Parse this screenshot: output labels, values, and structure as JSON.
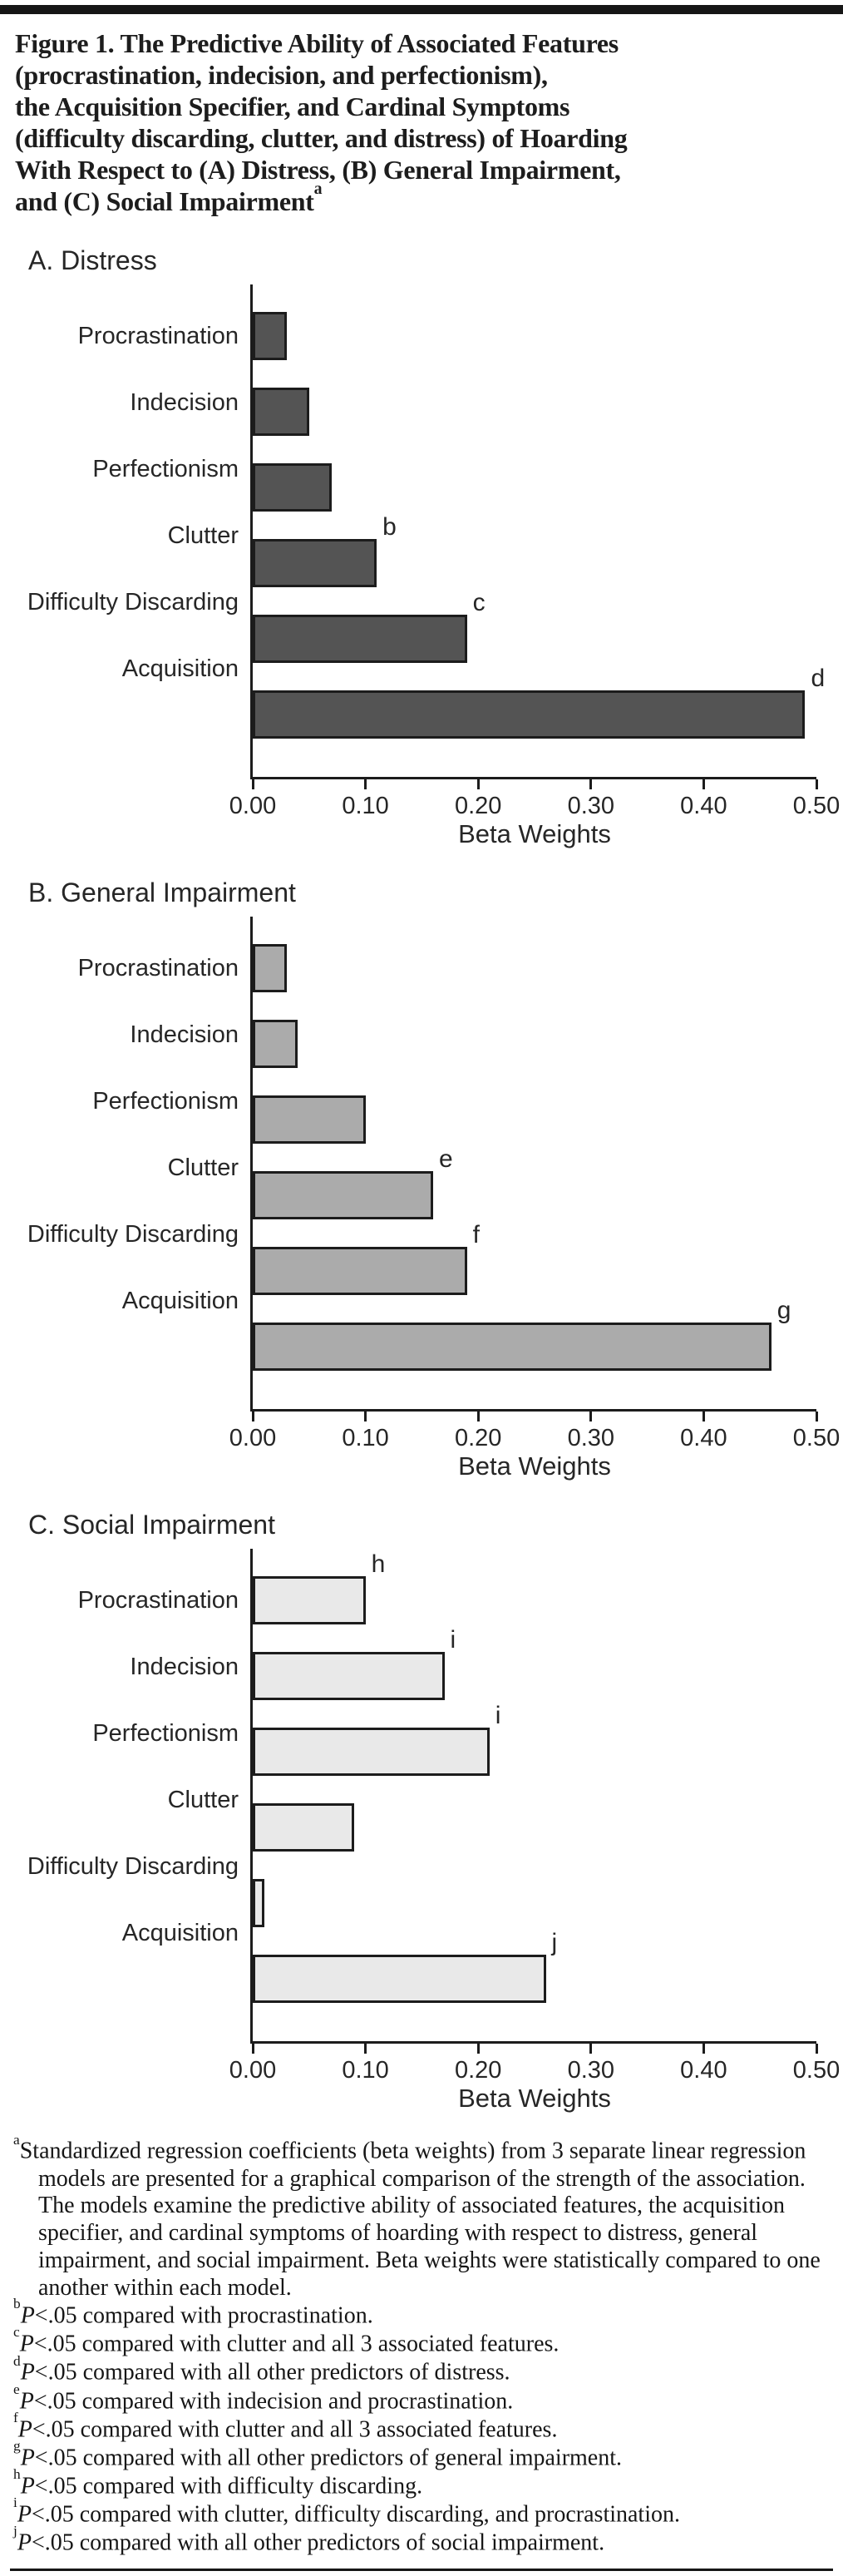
{
  "figure": {
    "title_lines": [
      "Figure 1. The Predictive Ability of Associated Features",
      "(procrastination, indecision, and perfectionism),",
      "the Acquisition Specifier, and Cardinal Symptoms",
      "(difficulty discarding, clutter, and distress) of Hoarding",
      "With Respect to (A) Distress, (B) General Impairment,",
      "and (C) Social Impairment"
    ],
    "title_superscript": "a"
  },
  "chart_data": [
    {
      "type": "bar",
      "orientation": "horizontal",
      "title": "A. Distress",
      "categories": [
        "Procrastination",
        "Indecision",
        "Perfectionism",
        "Clutter",
        "Difficulty Discarding",
        "Acquisition"
      ],
      "values": [
        0.03,
        0.05,
        0.07,
        0.11,
        0.19,
        0.49
      ],
      "annotations": [
        "",
        "",
        "",
        "b",
        "c",
        "d"
      ],
      "xlabel": "Beta Weights",
      "xlim": [
        0,
        0.5
      ],
      "x_ticks": [
        "0.00",
        "0.10",
        "0.20",
        "0.30",
        "0.40",
        "0.50"
      ],
      "bar_color": "#545454",
      "grid": false,
      "legend": "none"
    },
    {
      "type": "bar",
      "orientation": "horizontal",
      "title": "B. General Impairment",
      "categories": [
        "Procrastination",
        "Indecision",
        "Perfectionism",
        "Clutter",
        "Difficulty Discarding",
        "Acquisition"
      ],
      "values": [
        0.03,
        0.04,
        0.1,
        0.16,
        0.19,
        0.46
      ],
      "annotations": [
        "",
        "",
        "",
        "e",
        "f",
        "g"
      ],
      "xlabel": "Beta Weights",
      "xlim": [
        0,
        0.5
      ],
      "x_ticks": [
        "0.00",
        "0.10",
        "0.20",
        "0.30",
        "0.40",
        "0.50"
      ],
      "bar_color": "#ababab",
      "grid": false,
      "legend": "none"
    },
    {
      "type": "bar",
      "orientation": "horizontal",
      "title": "C. Social Impairment",
      "categories": [
        "Procrastination",
        "Indecision",
        "Perfectionism",
        "Clutter",
        "Difficulty Discarding",
        "Acquisition"
      ],
      "values": [
        0.1,
        0.17,
        0.21,
        0.09,
        0.01,
        0.26
      ],
      "annotations": [
        "h",
        "i",
        "i",
        "",
        "",
        "j"
      ],
      "xlabel": "Beta Weights",
      "xlim": [
        0,
        0.5
      ],
      "x_ticks": [
        "0.00",
        "0.10",
        "0.20",
        "0.30",
        "0.40",
        "0.50"
      ],
      "bar_color": "#e9e9e9",
      "grid": false,
      "legend": "none"
    }
  ],
  "footnotes": [
    {
      "sup": "a",
      "p": "",
      "rest": "Standardized regression coefficients (beta weights) from 3 separate linear regression models are presented for a graphical comparison of the strength of the association. The models examine the predictive ability of associated features, the acquisition specifier, and cardinal symptoms of hoarding with respect to distress, general impairment, and social impairment. Beta weights were statistically compared to one another within each model."
    },
    {
      "sup": "b",
      "p": "P",
      "rest": "<.05 compared with procrastination."
    },
    {
      "sup": "c",
      "p": "P",
      "rest": "<.05 compared with clutter and all 3 associated features."
    },
    {
      "sup": "d",
      "p": "P",
      "rest": "<.05 compared with all other predictors of distress."
    },
    {
      "sup": "e",
      "p": "P",
      "rest": "<.05 compared with indecision and procrastination."
    },
    {
      "sup": "f",
      "p": "P",
      "rest": "<.05 compared with clutter and all 3 associated features."
    },
    {
      "sup": "g",
      "p": "P",
      "rest": "<.05 compared with all other predictors of general impairment."
    },
    {
      "sup": "h",
      "p": "P",
      "rest": "<.05 compared with difficulty discarding."
    },
    {
      "sup": "i",
      "p": "P",
      "rest": "<.05 compared with clutter, difficulty discarding, and procrastination."
    },
    {
      "sup": "j",
      "p": "P",
      "rest": "<.05 compared with all other predictors of social impairment."
    }
  ]
}
